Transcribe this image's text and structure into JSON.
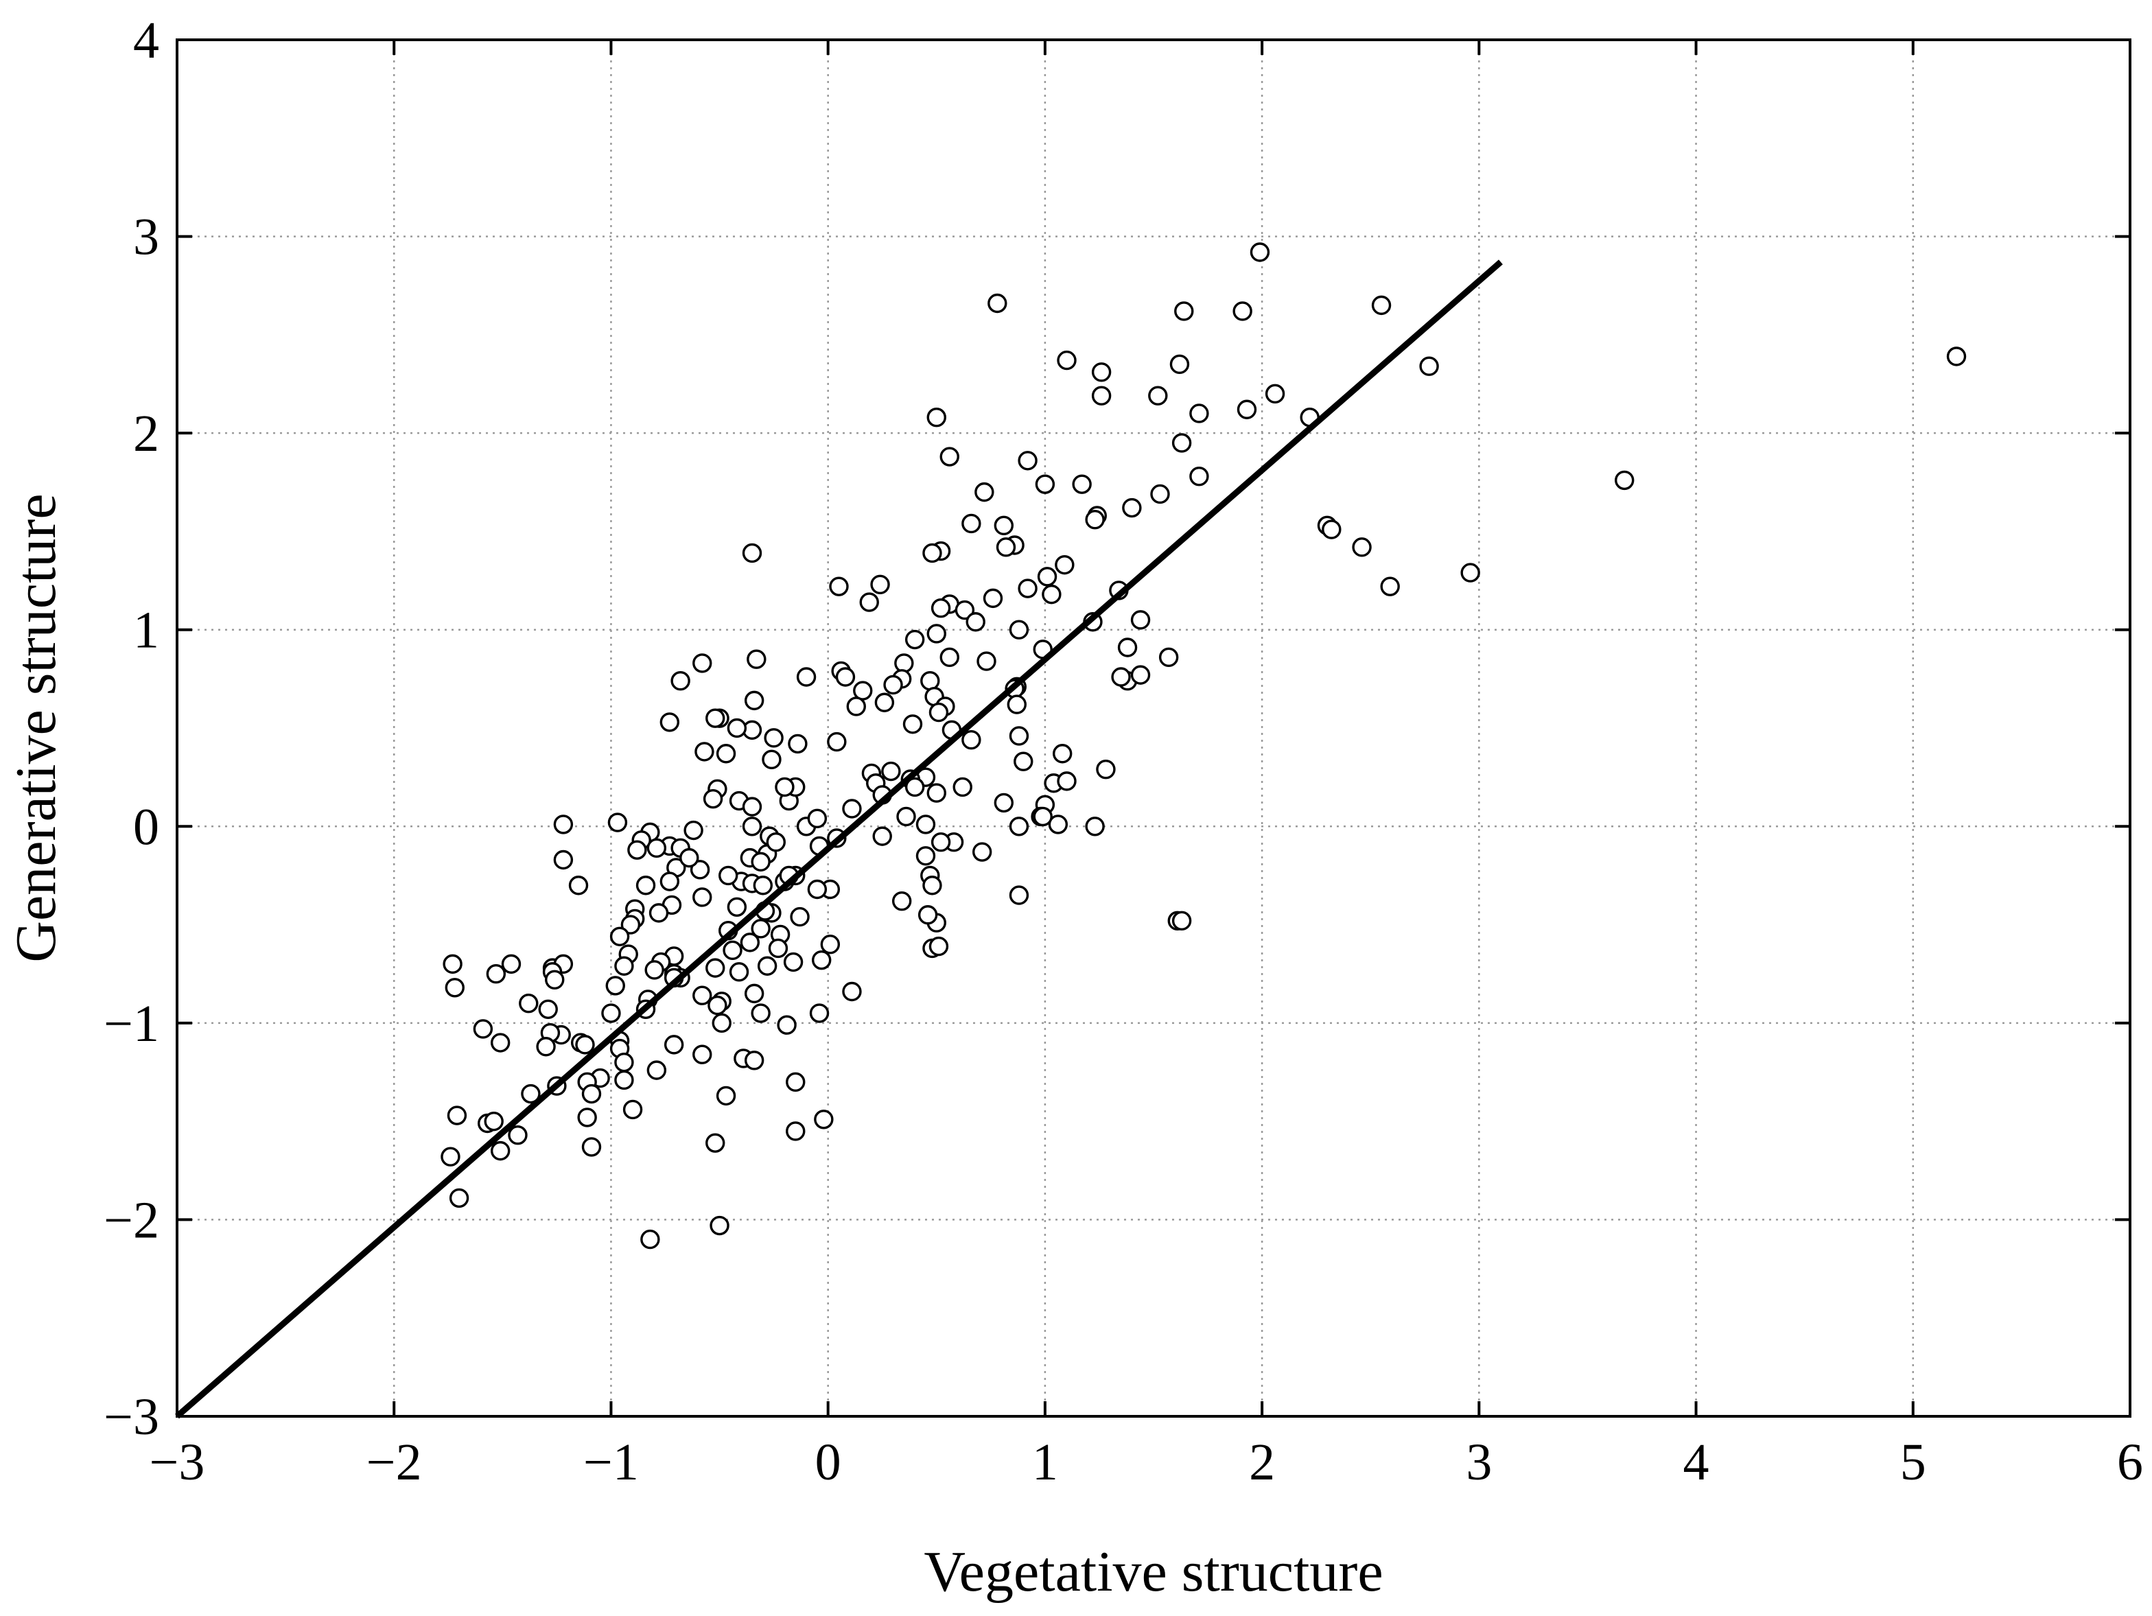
{
  "chart_data": {
    "type": "scatter",
    "title": "",
    "xlabel": "Vegetative structure",
    "ylabel": "Generative structure",
    "xlim": [
      -3,
      6
    ],
    "ylim": [
      -3,
      4
    ],
    "xticks": [
      -3,
      -2,
      -1,
      0,
      1,
      2,
      3,
      4,
      5,
      6
    ],
    "yticks": [
      -3,
      -2,
      -1,
      0,
      1,
      2,
      3,
      4
    ],
    "xtick_labels": [
      "−3",
      "−2",
      "−1",
      "0",
      "1",
      "2",
      "3",
      "4",
      "5",
      "6"
    ],
    "ytick_labels": [
      "−3",
      "−2",
      "−1",
      "0",
      "1",
      "2",
      "3",
      "4"
    ],
    "grid": true,
    "fit_line": {
      "x": [
        -3.0,
        3.1
      ],
      "y": [
        -3.0,
        2.87
      ]
    },
    "series": [
      {
        "name": "observations",
        "marker": "open-circle",
        "x": [
          1.99,
          0.78,
          2.55,
          1.64,
          1.91,
          5.2,
          1.62,
          1.1,
          1.26,
          2.77,
          0.5,
          1.26,
          1.52,
          2.06,
          1.71,
          1.93,
          2.22,
          1.63,
          0.56,
          0.92,
          1.0,
          1.17,
          1.71,
          0.72,
          1.24,
          1.53,
          3.67,
          1.4,
          0.86,
          0.66,
          0.81,
          2.3,
          1.23,
          2.32,
          2.46,
          0.52,
          0.48,
          -0.35,
          2.96,
          1.09,
          1.01,
          0.24,
          0.05,
          0.82,
          1.34,
          0.92,
          0.19,
          2.59,
          1.03,
          0.56,
          0.76,
          0.63,
          0.52,
          0.68,
          1.44,
          1.22,
          0.88,
          0.4,
          0.5,
          1.38,
          0.56,
          1.57,
          0.35,
          0.73,
          0.34,
          0.3,
          1.38,
          0.99,
          -0.33,
          0.87,
          -0.58,
          -0.1,
          -0.68,
          0.06,
          0.86,
          0.16,
          0.47,
          0.87,
          -0.34,
          0.08,
          0.49,
          0.54,
          0.26,
          0.13,
          1.35,
          1.44,
          -0.73,
          0.39,
          0.57,
          0.51,
          -0.5,
          -0.35,
          0.04,
          -0.14,
          -0.25,
          -0.52,
          0.66,
          0.88,
          -0.57,
          0.2,
          0.22,
          0.29,
          0.9,
          -0.47,
          -0.26,
          -0.42,
          0.45,
          0.38,
          1.06,
          1.08,
          1.28,
          -0.18,
          0.11,
          -0.51,
          0.4,
          -0.41,
          0.36,
          -0.15,
          0.62,
          0.5,
          0.25,
          0.81,
          1.0,
          0.58,
          0.04,
          -0.97,
          -1.22,
          0.88,
          1.04,
          1.1,
          -0.35,
          -0.2,
          0.45,
          -0.53,
          0.98,
          -0.35,
          -0.1,
          1.23,
          0.99,
          -0.05,
          0.52,
          0.25,
          0.71,
          -0.82,
          -0.73,
          -0.27,
          -0.62,
          -0.86,
          -0.04,
          -0.28,
          -0.24,
          0.45,
          -0.36,
          -0.68,
          -0.88,
          -0.79,
          -0.31,
          -0.2,
          0.47,
          -0.84,
          -0.7,
          -0.59,
          -0.4,
          0.48,
          -1.22,
          -0.15,
          -0.18,
          -0.46,
          -1.15,
          -0.35,
          -0.64,
          0.88,
          -0.3,
          0.01,
          -0.73,
          -0.05,
          -0.89,
          -0.72,
          -0.58,
          0.34,
          -0.42,
          -0.26,
          0.5,
          -0.13,
          -0.22,
          1.61,
          -0.78,
          0.46,
          -0.31,
          -0.29,
          -0.89,
          0.01,
          0.48,
          1.63,
          -0.91,
          -0.96,
          -0.46,
          -0.36,
          -0.23,
          -0.44,
          -0.92,
          -0.71,
          -0.77,
          -0.03,
          0.51,
          -1.27,
          -0.28,
          -0.71,
          -0.16,
          -0.8,
          -0.41,
          -0.68,
          -0.94,
          0.11,
          -0.52,
          -1.22,
          -1.27,
          -0.71,
          -0.98,
          -1.46,
          -1.72,
          -1.53,
          -1.26,
          -0.34,
          -1.0,
          -0.58,
          -0.83,
          -0.49,
          -0.84,
          -0.51,
          -1.38,
          -1.29,
          -0.31,
          -0.04,
          -0.49,
          -1.23,
          -0.19,
          -1.28,
          -1.59,
          -1.14,
          -0.96,
          -0.96,
          -0.58,
          -0.39,
          -1.12,
          -1.3,
          -0.71,
          -1.51,
          -0.34,
          -0.15,
          -0.94,
          -0.79,
          -1.05,
          -1.11,
          -1.25,
          -0.47,
          -0.94,
          -1.09,
          -1.37,
          -1.11,
          -0.9,
          -1.71,
          -1.09,
          -1.43,
          -1.57,
          -1.54,
          -1.51,
          -1.7,
          -1.74,
          -0.15,
          -0.02,
          -0.52,
          -1.73,
          -0.82,
          -0.5
        ],
        "y": [
          2.92,
          2.66,
          2.65,
          2.62,
          2.62,
          2.39,
          2.35,
          2.37,
          2.31,
          2.34,
          2.08,
          2.19,
          2.19,
          2.2,
          2.1,
          2.12,
          2.08,
          1.95,
          1.88,
          1.86,
          1.74,
          1.74,
          1.78,
          1.7,
          1.58,
          1.69,
          1.76,
          1.62,
          1.43,
          1.54,
          1.53,
          1.53,
          1.56,
          1.51,
          1.42,
          1.4,
          1.39,
          1.39,
          1.29,
          1.33,
          1.27,
          1.23,
          1.22,
          1.42,
          1.2,
          1.21,
          1.14,
          1.22,
          1.18,
          1.13,
          1.16,
          1.1,
          1.11,
          1.04,
          1.05,
          1.04,
          1.0,
          0.95,
          0.98,
          0.91,
          0.86,
          0.86,
          0.83,
          0.84,
          0.75,
          0.72,
          0.74,
          0.9,
          0.85,
          0.71,
          0.83,
          0.76,
          0.74,
          0.79,
          0.7,
          0.69,
          0.74,
          0.62,
          0.64,
          0.76,
          0.66,
          0.61,
          0.63,
          0.61,
          0.76,
          0.77,
          0.53,
          0.52,
          0.49,
          0.58,
          0.55,
          0.49,
          0.43,
          0.42,
          0.45,
          0.55,
          0.44,
          0.46,
          0.38,
          0.27,
          0.22,
          0.28,
          0.33,
          0.37,
          0.34,
          0.5,
          0.25,
          0.24,
          0.01,
          0.37,
          0.29,
          0.13,
          0.09,
          0.19,
          0.2,
          0.13,
          0.05,
          0.2,
          0.2,
          0.17,
          0.16,
          0.12,
          0.11,
          -0.08,
          -0.06,
          0.02,
          0.01,
          0.0,
          0.22,
          0.23,
          0.0,
          0.2,
          0.01,
          0.14,
          0.05,
          0.1,
          0.0,
          0.0,
          0.05,
          0.04,
          -0.08,
          -0.05,
          -0.13,
          -0.03,
          -0.1,
          -0.05,
          -0.02,
          -0.07,
          -0.1,
          -0.14,
          -0.08,
          -0.15,
          -0.16,
          -0.11,
          -0.12,
          -0.11,
          -0.18,
          -0.28,
          -0.25,
          -0.3,
          -0.21,
          -0.22,
          -0.28,
          -0.3,
          -0.17,
          -0.25,
          -0.25,
          -0.25,
          -0.3,
          -0.29,
          -0.16,
          -0.35,
          -0.3,
          -0.32,
          -0.28,
          -0.32,
          -0.42,
          -0.4,
          -0.36,
          -0.38,
          -0.41,
          -0.44,
          -0.49,
          -0.46,
          -0.55,
          -0.48,
          -0.44,
          -0.45,
          -0.52,
          -0.43,
          -0.47,
          -0.6,
          -0.62,
          -0.48,
          -0.5,
          -0.56,
          -0.53,
          -0.59,
          -0.62,
          -0.63,
          -0.65,
          -0.66,
          -0.69,
          -0.68,
          -0.61,
          -0.72,
          -0.71,
          -0.75,
          -0.69,
          -0.73,
          -0.74,
          -0.77,
          -0.71,
          -0.84,
          -0.72,
          -0.7,
          -0.74,
          -0.77,
          -0.81,
          -0.7,
          -0.82,
          -0.75,
          -0.78,
          -0.85,
          -0.95,
          -0.86,
          -0.88,
          -0.89,
          -0.93,
          -0.91,
          -0.9,
          -0.93,
          -0.95,
          -0.95,
          -1.0,
          -1.06,
          -1.01,
          -1.05,
          -1.03,
          -1.1,
          -1.09,
          -1.13,
          -1.16,
          -1.18,
          -1.11,
          -1.12,
          -1.11,
          -1.1,
          -1.19,
          -1.3,
          -1.2,
          -1.24,
          -1.28,
          -1.3,
          -1.32,
          -1.37,
          -1.29,
          -1.36,
          -1.36,
          -1.48,
          -1.44,
          -1.47,
          -1.63,
          -1.57,
          -1.51,
          -1.5,
          -1.65,
          -1.89,
          -1.68,
          -1.55,
          -1.49,
          -1.61,
          -0.7,
          -2.1,
          -2.03
        ]
      }
    ]
  }
}
